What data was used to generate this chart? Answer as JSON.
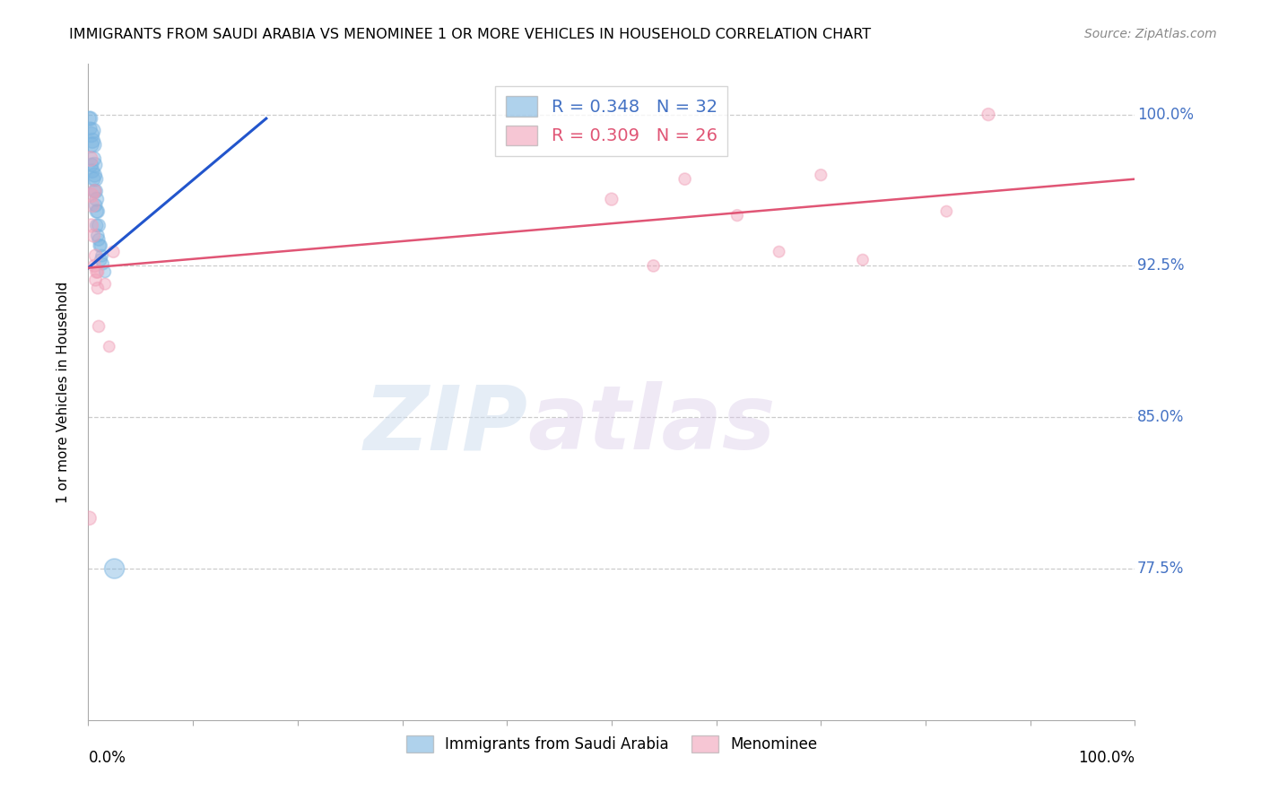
{
  "title": "IMMIGRANTS FROM SAUDI ARABIA VS MENOMINEE 1 OR MORE VEHICLES IN HOUSEHOLD CORRELATION CHART",
  "source": "Source: ZipAtlas.com",
  "ylabel": "1 or more Vehicles in Household",
  "xlim": [
    0.0,
    1.0
  ],
  "ylim": [
    0.7,
    1.025
  ],
  "yticks": [
    1.0,
    0.925,
    0.85,
    0.775
  ],
  "ytick_labels": [
    "100.0%",
    "92.5%",
    "85.0%",
    "77.5%"
  ],
  "legend_r1": "R = 0.348",
  "legend_n1": "N = 32",
  "legend_r2": "R = 0.309",
  "legend_n2": "N = 26",
  "blue_color": "#7ab4e0",
  "pink_color": "#f0a0b8",
  "blue_line_color": "#2255cc",
  "pink_line_color": "#e05575",
  "watermark_zip": "ZIP",
  "watermark_atlas": "atlas",
  "blue_dots_x": [
    0.001,
    0.002,
    0.002,
    0.003,
    0.003,
    0.003,
    0.004,
    0.004,
    0.004,
    0.005,
    0.005,
    0.005,
    0.006,
    0.006,
    0.006,
    0.007,
    0.007,
    0.007,
    0.008,
    0.008,
    0.008,
    0.009,
    0.009,
    0.01,
    0.01,
    0.011,
    0.012,
    0.012,
    0.013,
    0.014,
    0.016,
    0.025
  ],
  "blue_dots_y": [
    0.998,
    0.998,
    0.993,
    0.99,
    0.985,
    0.975,
    0.992,
    0.987,
    0.972,
    0.985,
    0.978,
    0.968,
    0.975,
    0.97,
    0.962,
    0.968,
    0.962,
    0.955,
    0.958,
    0.952,
    0.945,
    0.952,
    0.94,
    0.945,
    0.938,
    0.935,
    0.935,
    0.928,
    0.93,
    0.926,
    0.922,
    0.775
  ],
  "blue_dot_sizes": [
    120,
    130,
    110,
    150,
    140,
    120,
    160,
    145,
    125,
    155,
    140,
    120,
    145,
    130,
    115,
    135,
    125,
    110,
    125,
    115,
    105,
    115,
    105,
    110,
    100,
    105,
    100,
    95,
    95,
    90,
    85,
    250
  ],
  "pink_dots_x": [
    0.002,
    0.003,
    0.003,
    0.004,
    0.005,
    0.006,
    0.006,
    0.007,
    0.007,
    0.008,
    0.009,
    0.009,
    0.01,
    0.016,
    0.02,
    0.024,
    0.001,
    0.5,
    0.54,
    0.57,
    0.62,
    0.66,
    0.7,
    0.74,
    0.82,
    0.86
  ],
  "pink_dots_y": [
    0.978,
    0.96,
    0.945,
    0.955,
    0.94,
    0.962,
    0.925,
    0.93,
    0.918,
    0.922,
    0.922,
    0.914,
    0.895,
    0.916,
    0.885,
    0.932,
    0.8,
    0.958,
    0.925,
    0.968,
    0.95,
    0.932,
    0.97,
    0.928,
    0.952,
    1.0
  ],
  "pink_dot_sizes": [
    140,
    130,
    115,
    120,
    110,
    115,
    100,
    105,
    95,
    100,
    95,
    90,
    90,
    85,
    80,
    90,
    120,
    100,
    90,
    90,
    85,
    80,
    85,
    80,
    80,
    100
  ],
  "blue_trendline_x": [
    0.0,
    0.17
  ],
  "blue_trendline_y_start": 0.924,
  "blue_trendline_y_end": 0.998,
  "pink_trendline_x": [
    0.0,
    1.0
  ],
  "pink_trendline_y_start": 0.924,
  "pink_trendline_y_end": 0.968
}
